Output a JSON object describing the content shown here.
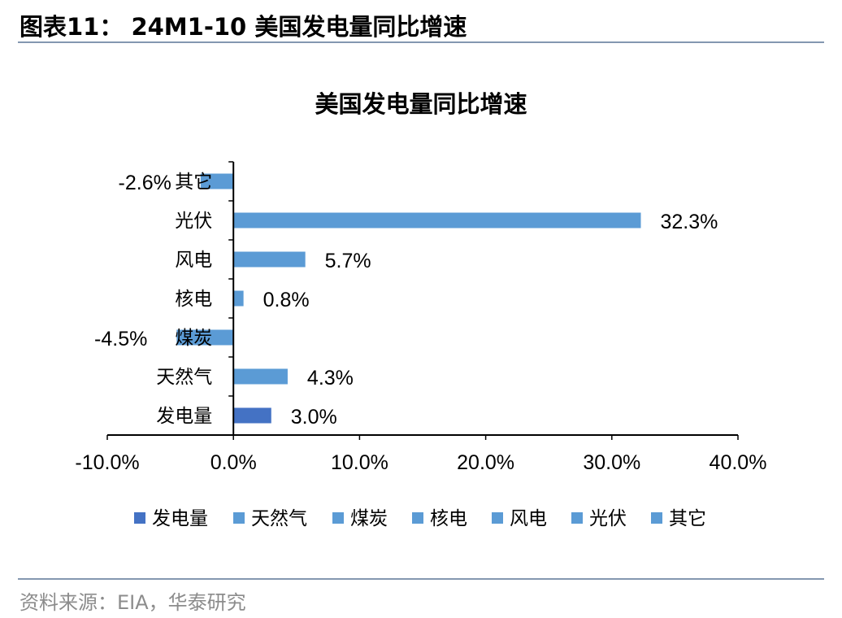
{
  "header": {
    "title": "图表11： 24M1-10 美国发电量同比增速"
  },
  "footer": {
    "source": "资料来源：EIA，华泰研究"
  },
  "chart_data": {
    "type": "bar",
    "orientation": "horizontal",
    "title": "美国发电量同比增速",
    "categories": [
      "发电量",
      "天然气",
      "煤炭",
      "核电",
      "风电",
      "光伏",
      "其它"
    ],
    "values": [
      3.0,
      4.3,
      -4.5,
      0.8,
      5.7,
      32.3,
      -2.6
    ],
    "value_labels": [
      "3.0%",
      "4.3%",
      "-4.5%",
      "0.8%",
      "5.7%",
      "32.3%",
      "-2.6%"
    ],
    "colors": [
      "#4472c4",
      "#5b9bd5",
      "#5b9bd5",
      "#5b9bd5",
      "#5b9bd5",
      "#5b9bd5",
      "#5b9bd5"
    ],
    "xlim": [
      -10,
      40
    ],
    "x_ticks": [
      -10,
      0,
      10,
      20,
      30,
      40
    ],
    "x_tick_labels": [
      "-10.0%",
      "0.0%",
      "10.0%",
      "20.0%",
      "30.0%",
      "40.0%"
    ],
    "xlabel": "",
    "ylabel": "",
    "grid": false,
    "legend_position": "bottom"
  }
}
